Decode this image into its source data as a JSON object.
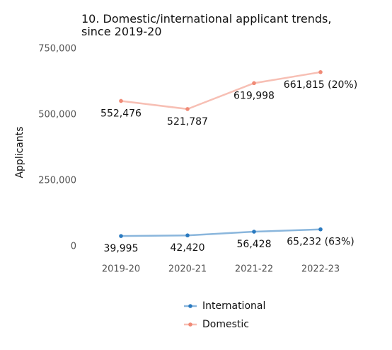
{
  "chart_data": {
    "type": "line",
    "title": "10. Domestic/international applicant trends, since 2019-20",
    "y_label": "Applicants",
    "categories": [
      "2019-20",
      "2020-21",
      "2021-22",
      "2022-23"
    ],
    "series": [
      {
        "name": "International",
        "color": "#2a7ac0",
        "values": [
          39995,
          42420,
          56428,
          65232
        ],
        "value_labels": [
          "39,995",
          "42,420",
          "56,428",
          "65,232 (63%)"
        ]
      },
      {
        "name": "Domestic",
        "color": "#f08a76",
        "values": [
          552476,
          521787,
          619998,
          661815
        ],
        "value_labels": [
          "552,476",
          "521,787",
          "619,998",
          "661,815 (20%)"
        ]
      }
    ],
    "ylim": [
      0,
      750000
    ],
    "yticks": [
      0,
      {
        "value": 250000,
        "label": "250,000"
      },
      {
        "value": 500000,
        "label": "500,000"
      },
      {
        "value": 750000,
        "label": "750,000"
      }
    ],
    "grid": false,
    "legend": "bottom"
  }
}
